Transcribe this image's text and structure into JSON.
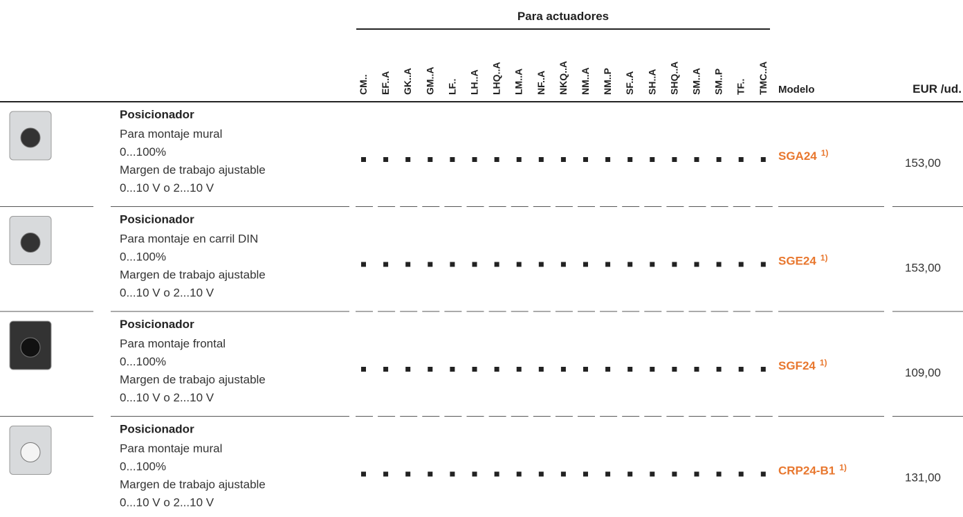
{
  "header": {
    "group": "Para actuadores",
    "actuators": [
      "CM..",
      "EF..A",
      "GK..A",
      "GM..A",
      "LF..",
      "LH..A",
      "LHQ..A",
      "LM..A",
      "NF..A",
      "NKQ..A",
      "NM..A",
      "NM..P",
      "SF..A",
      "SH..A",
      "SHQ..A",
      "SM..A",
      "SM..P",
      "TF..",
      "TMC..A"
    ],
    "model": "Modelo",
    "price": "EUR /ud."
  },
  "rows": [
    {
      "title": "Posicionador",
      "lines": [
        "Para montaje mural",
        "0...100%",
        "Margen de trabajo ajustable",
        "0...10 V o 2...10 V"
      ],
      "model": "SGA24",
      "note": "1)",
      "price": "153,00"
    },
    {
      "title": "Posicionador",
      "lines": [
        "Para montaje en carril DIN",
        "0...100%",
        "Margen de trabajo ajustable",
        "0...10 V o 2...10 V"
      ],
      "model": "SGE24",
      "note": "1)",
      "price": "153,00"
    },
    {
      "title": "Posicionador",
      "lines": [
        "Para montaje frontal",
        "0...100%",
        "Margen de trabajo ajustable",
        "0...10 V o 2...10 V"
      ],
      "model": "SGF24",
      "note": "1)",
      "price": "109,00"
    },
    {
      "title": "Posicionador",
      "lines": [
        "Para montaje mural",
        "0...100%",
        "Margen de trabajo ajustable",
        "0...10 V o 2...10 V"
      ],
      "model": "CRP24-B1",
      "note": "1)",
      "price": "131,00"
    }
  ]
}
